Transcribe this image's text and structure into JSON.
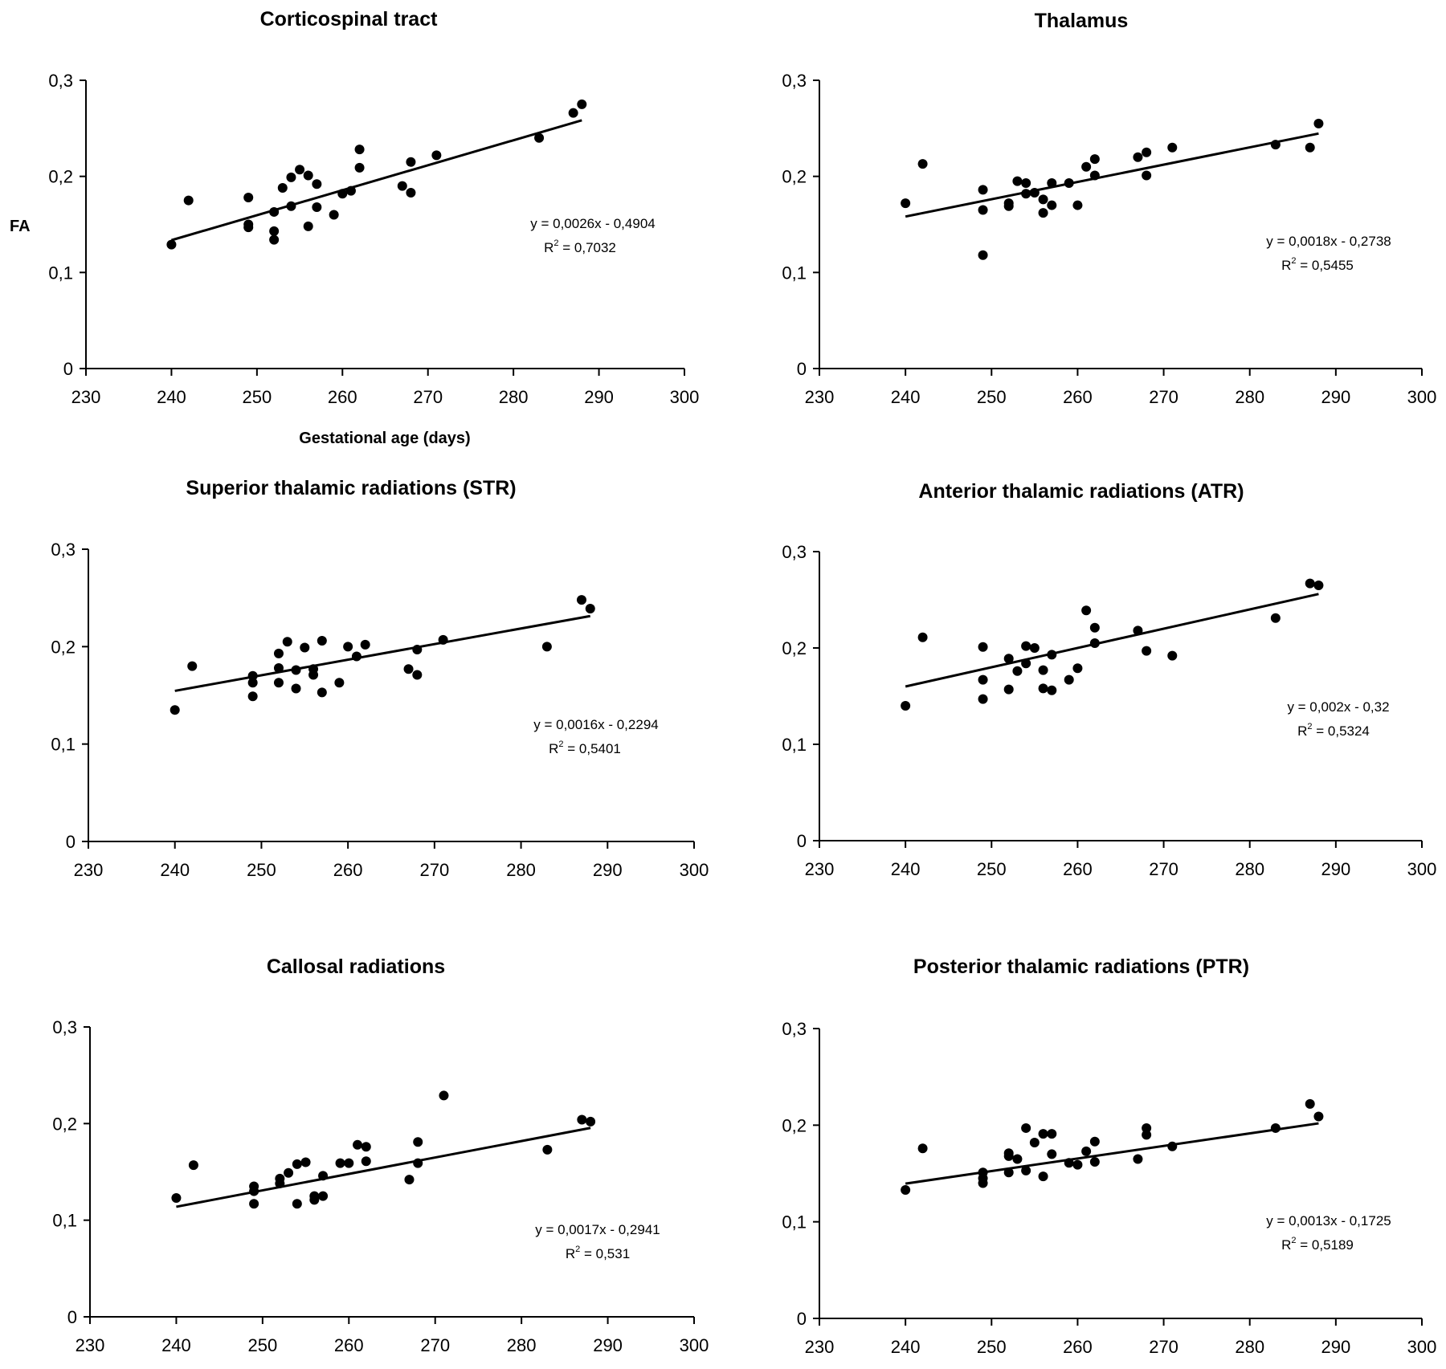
{
  "figure": {
    "shared_ylabel": "FA",
    "shared_xlabel": "Gestational age (days)"
  },
  "chart_data": [
    {
      "type": "scatter",
      "title": "Corticospinal tract",
      "xlabel": "Gestational age (days)",
      "ylabel": "FA",
      "xlim": [
        230,
        300
      ],
      "ylim": [
        0,
        0.3
      ],
      "xticks": [
        230,
        240,
        250,
        260,
        270,
        280,
        290,
        300
      ],
      "yticks": [
        0,
        0.1,
        0.2,
        0.3
      ],
      "ytick_labels": [
        "0",
        "0,1",
        "0,2",
        "0,3"
      ],
      "grid": false,
      "trendline": {
        "slope": 0.0026,
        "intercept": -0.4904,
        "x_range": [
          240,
          288
        ]
      },
      "equation": "y = 0,0026x - 0,4904",
      "r2_label": "R",
      "r2_value": " = 0,7032",
      "points": [
        [
          240,
          0.129
        ],
        [
          242,
          0.175
        ],
        [
          249,
          0.178
        ],
        [
          249,
          0.15
        ],
        [
          249,
          0.147
        ],
        [
          252,
          0.163
        ],
        [
          252,
          0.143
        ],
        [
          252,
          0.134
        ],
        [
          253,
          0.188
        ],
        [
          254,
          0.199
        ],
        [
          254,
          0.169
        ],
        [
          255,
          0.207
        ],
        [
          256,
          0.201
        ],
        [
          256,
          0.148
        ],
        [
          257,
          0.192
        ],
        [
          257,
          0.168
        ],
        [
          259,
          0.16
        ],
        [
          260,
          0.182
        ],
        [
          261,
          0.185
        ],
        [
          262,
          0.228
        ],
        [
          262,
          0.209
        ],
        [
          267,
          0.19
        ],
        [
          268,
          0.215
        ],
        [
          268,
          0.183
        ],
        [
          271,
          0.222
        ],
        [
          283,
          0.24
        ],
        [
          287,
          0.266
        ],
        [
          288,
          0.275
        ]
      ]
    },
    {
      "type": "scatter",
      "title": "Thalamus",
      "xlabel": "",
      "ylabel": "",
      "xlim": [
        230,
        300
      ],
      "ylim": [
        0,
        0.3
      ],
      "xticks": [
        230,
        240,
        250,
        260,
        270,
        280,
        290,
        300
      ],
      "yticks": [
        0,
        0.1,
        0.2,
        0.3
      ],
      "ytick_labels": [
        "0",
        "0,1",
        "0,2",
        "0,3"
      ],
      "grid": false,
      "trendline": {
        "slope": 0.0018,
        "intercept": -0.2738,
        "x_range": [
          240,
          288
        ]
      },
      "equation": "y = 0,0018x - 0,2738",
      "r2_label": "R",
      "r2_value": " = 0,5455",
      "points": [
        [
          240,
          0.172
        ],
        [
          242,
          0.213
        ],
        [
          249,
          0.186
        ],
        [
          249,
          0.165
        ],
        [
          249,
          0.118
        ],
        [
          252,
          0.172
        ],
        [
          252,
          0.169
        ],
        [
          253,
          0.195
        ],
        [
          254,
          0.193
        ],
        [
          254,
          0.182
        ],
        [
          255,
          0.183
        ],
        [
          256,
          0.176
        ],
        [
          256,
          0.162
        ],
        [
          257,
          0.193
        ],
        [
          257,
          0.17
        ],
        [
          259,
          0.193
        ],
        [
          260,
          0.17
        ],
        [
          261,
          0.21
        ],
        [
          262,
          0.218
        ],
        [
          262,
          0.201
        ],
        [
          267,
          0.22
        ],
        [
          268,
          0.225
        ],
        [
          268,
          0.201
        ],
        [
          271,
          0.23
        ],
        [
          283,
          0.233
        ],
        [
          287,
          0.23
        ],
        [
          288,
          0.255
        ]
      ]
    },
    {
      "type": "scatter",
      "title": "Superior thalamic radiations (STR)",
      "xlabel": "",
      "ylabel": "",
      "xlim": [
        230,
        300
      ],
      "ylim": [
        0,
        0.3
      ],
      "xticks": [
        230,
        240,
        250,
        260,
        270,
        280,
        290,
        300
      ],
      "yticks": [
        0,
        0.1,
        0.2,
        0.3
      ],
      "ytick_labels": [
        "0",
        "0,1",
        "0,2",
        "0,3"
      ],
      "grid": false,
      "trendline": {
        "slope": 0.0016,
        "intercept": -0.2294,
        "x_range": [
          240,
          288
        ]
      },
      "equation": "y = 0,0016x - 0,2294",
      "r2_label": "R",
      "r2_value": " = 0,5401",
      "points": [
        [
          240,
          0.135
        ],
        [
          242,
          0.18
        ],
        [
          249,
          0.17
        ],
        [
          249,
          0.163
        ],
        [
          249,
          0.149
        ],
        [
          252,
          0.193
        ],
        [
          252,
          0.178
        ],
        [
          252,
          0.163
        ],
        [
          253,
          0.205
        ],
        [
          254,
          0.176
        ],
        [
          254,
          0.157
        ],
        [
          255,
          0.199
        ],
        [
          256,
          0.177
        ],
        [
          256,
          0.171
        ],
        [
          257,
          0.206
        ],
        [
          257,
          0.153
        ],
        [
          259,
          0.163
        ],
        [
          260,
          0.2
        ],
        [
          261,
          0.19
        ],
        [
          262,
          0.202
        ],
        [
          267,
          0.177
        ],
        [
          268,
          0.197
        ],
        [
          268,
          0.171
        ],
        [
          271,
          0.207
        ],
        [
          283,
          0.2
        ],
        [
          287,
          0.248
        ],
        [
          288,
          0.239
        ]
      ]
    },
    {
      "type": "scatter",
      "title": "Anterior thalamic radiations (ATR)",
      "xlabel": "",
      "ylabel": "",
      "xlim": [
        230,
        300
      ],
      "ylim": [
        0,
        0.3
      ],
      "xticks": [
        230,
        240,
        250,
        260,
        270,
        280,
        290,
        300
      ],
      "yticks": [
        0,
        0.1,
        0.2,
        0.3
      ],
      "ytick_labels": [
        "0",
        "0,1",
        "0,2",
        "0,3"
      ],
      "grid": false,
      "trendline": {
        "slope": 0.002,
        "intercept": -0.32,
        "x_range": [
          240,
          288
        ]
      },
      "equation": "y = 0,002x - 0,32",
      "r2_label": "R",
      "r2_value": " = 0,5324",
      "points": [
        [
          240,
          0.14
        ],
        [
          242,
          0.211
        ],
        [
          249,
          0.201
        ],
        [
          249,
          0.167
        ],
        [
          249,
          0.147
        ],
        [
          252,
          0.189
        ],
        [
          252,
          0.157
        ],
        [
          253,
          0.176
        ],
        [
          254,
          0.202
        ],
        [
          254,
          0.184
        ],
        [
          255,
          0.2
        ],
        [
          256,
          0.177
        ],
        [
          256,
          0.158
        ],
        [
          257,
          0.193
        ],
        [
          257,
          0.156
        ],
        [
          259,
          0.167
        ],
        [
          260,
          0.179
        ],
        [
          261,
          0.239
        ],
        [
          262,
          0.221
        ],
        [
          262,
          0.205
        ],
        [
          267,
          0.218
        ],
        [
          268,
          0.197
        ],
        [
          271,
          0.192
        ],
        [
          283,
          0.231
        ],
        [
          287,
          0.267
        ],
        [
          288,
          0.265
        ]
      ]
    },
    {
      "type": "scatter",
      "title": "Callosal radiations",
      "xlabel": "",
      "ylabel": "",
      "xlim": [
        230,
        300
      ],
      "ylim": [
        0,
        0.3
      ],
      "xticks": [
        230,
        240,
        250,
        260,
        270,
        280,
        290,
        300
      ],
      "yticks": [
        0,
        0.1,
        0.2,
        0.3
      ],
      "ytick_labels": [
        "0",
        "0,1",
        "0,2",
        "0,3"
      ],
      "grid": false,
      "trendline": {
        "slope": 0.0017,
        "intercept": -0.2941,
        "x_range": [
          240,
          288
        ]
      },
      "equation": "y = 0,0017x - 0,2941",
      "r2_label": "R",
      "r2_value": " = 0,531",
      "points": [
        [
          240,
          0.123
        ],
        [
          242,
          0.157
        ],
        [
          249,
          0.135
        ],
        [
          249,
          0.13
        ],
        [
          249,
          0.117
        ],
        [
          252,
          0.143
        ],
        [
          252,
          0.138
        ],
        [
          253,
          0.149
        ],
        [
          254,
          0.158
        ],
        [
          254,
          0.117
        ],
        [
          255,
          0.16
        ],
        [
          256,
          0.125
        ],
        [
          256,
          0.121
        ],
        [
          257,
          0.146
        ],
        [
          257,
          0.125
        ],
        [
          259,
          0.159
        ],
        [
          260,
          0.159
        ],
        [
          261,
          0.178
        ],
        [
          262,
          0.176
        ],
        [
          262,
          0.161
        ],
        [
          267,
          0.142
        ],
        [
          268,
          0.181
        ],
        [
          268,
          0.159
        ],
        [
          271,
          0.229
        ],
        [
          283,
          0.173
        ],
        [
          287,
          0.204
        ],
        [
          288,
          0.202
        ]
      ]
    },
    {
      "type": "scatter",
      "title": "Posterior thalamic radiations (PTR)",
      "xlabel": "",
      "ylabel": "",
      "xlim": [
        230,
        300
      ],
      "ylim": [
        0,
        0.3
      ],
      "xticks": [
        230,
        240,
        250,
        260,
        270,
        280,
        290,
        300
      ],
      "yticks": [
        0,
        0.1,
        0.2,
        0.3
      ],
      "ytick_labels": [
        "0",
        "0,1",
        "0,2",
        "0,3"
      ],
      "grid": false,
      "trendline": {
        "slope": 0.0013,
        "intercept": -0.1725,
        "x_range": [
          240,
          288
        ]
      },
      "equation": "y = 0,0013x - 0,1725",
      "r2_label": "R",
      "r2_value": " = 0,5189",
      "points": [
        [
          240,
          0.133
        ],
        [
          242,
          0.176
        ],
        [
          249,
          0.151
        ],
        [
          249,
          0.145
        ],
        [
          249,
          0.14
        ],
        [
          252,
          0.171
        ],
        [
          252,
          0.168
        ],
        [
          252,
          0.151
        ],
        [
          253,
          0.165
        ],
        [
          254,
          0.197
        ],
        [
          254,
          0.153
        ],
        [
          255,
          0.182
        ],
        [
          256,
          0.191
        ],
        [
          256,
          0.147
        ],
        [
          257,
          0.191
        ],
        [
          257,
          0.17
        ],
        [
          259,
          0.161
        ],
        [
          260,
          0.159
        ],
        [
          261,
          0.173
        ],
        [
          262,
          0.183
        ],
        [
          262,
          0.162
        ],
        [
          267,
          0.165
        ],
        [
          268,
          0.197
        ],
        [
          268,
          0.19
        ],
        [
          271,
          0.178
        ],
        [
          283,
          0.197
        ],
        [
          287,
          0.222
        ],
        [
          288,
          0.209
        ]
      ]
    }
  ]
}
